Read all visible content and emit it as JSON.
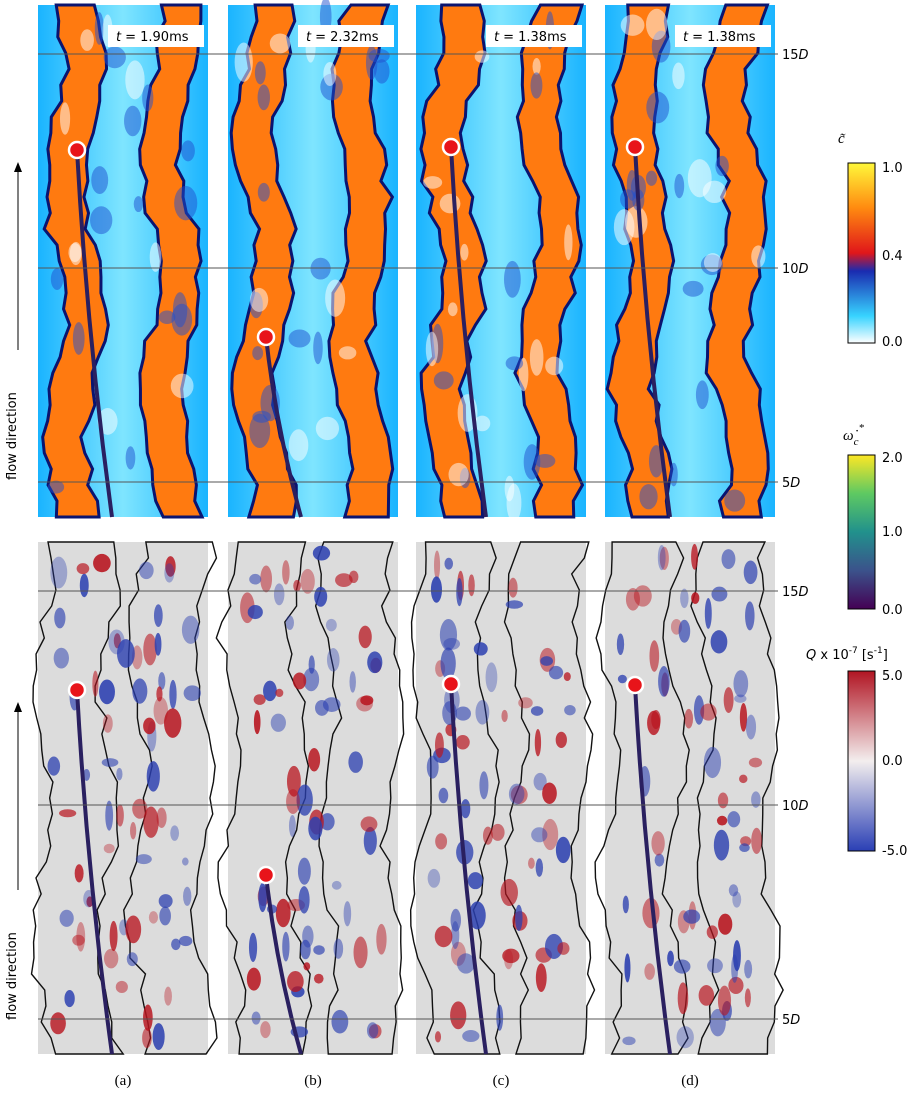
{
  "panels": [
    {
      "label": "(a)",
      "time": {
        "symbol": "t",
        "value": "= 1.90ms"
      }
    },
    {
      "label": "(b)",
      "time": {
        "symbol": "t",
        "value": "= 2.32ms"
      }
    },
    {
      "label": "(c)",
      "time": {
        "symbol": "t",
        "value": "= 1.38ms"
      }
    },
    {
      "label": "(d)",
      "time": {
        "symbol": "t",
        "value": "= 1.38ms"
      }
    }
  ],
  "row_labels": [
    "flow direction",
    "flow direction"
  ],
  "heights": [
    {
      "number": "15",
      "unit": "D"
    },
    {
      "number": "10",
      "unit": "D"
    },
    {
      "number": "5",
      "unit": "D"
    }
  ],
  "colorbars": [
    {
      "title": "c̃",
      "ticks": [
        "1.0",
        "0.4",
        "0.0"
      ]
    },
    {
      "title": {
        "symbol": "ω̇",
        "sub": "c",
        "sup": "*"
      },
      "ticks": [
        "2.0",
        "1.0",
        "0.0"
      ]
    },
    {
      "title": {
        "symbol": "Q",
        "text": " x 10",
        "exp": "-7",
        "unit": " [s",
        "unit_exp": "-1",
        "close": "]"
      },
      "ticks": [
        "5.0",
        "0.0",
        "-5.0"
      ]
    }
  ]
}
